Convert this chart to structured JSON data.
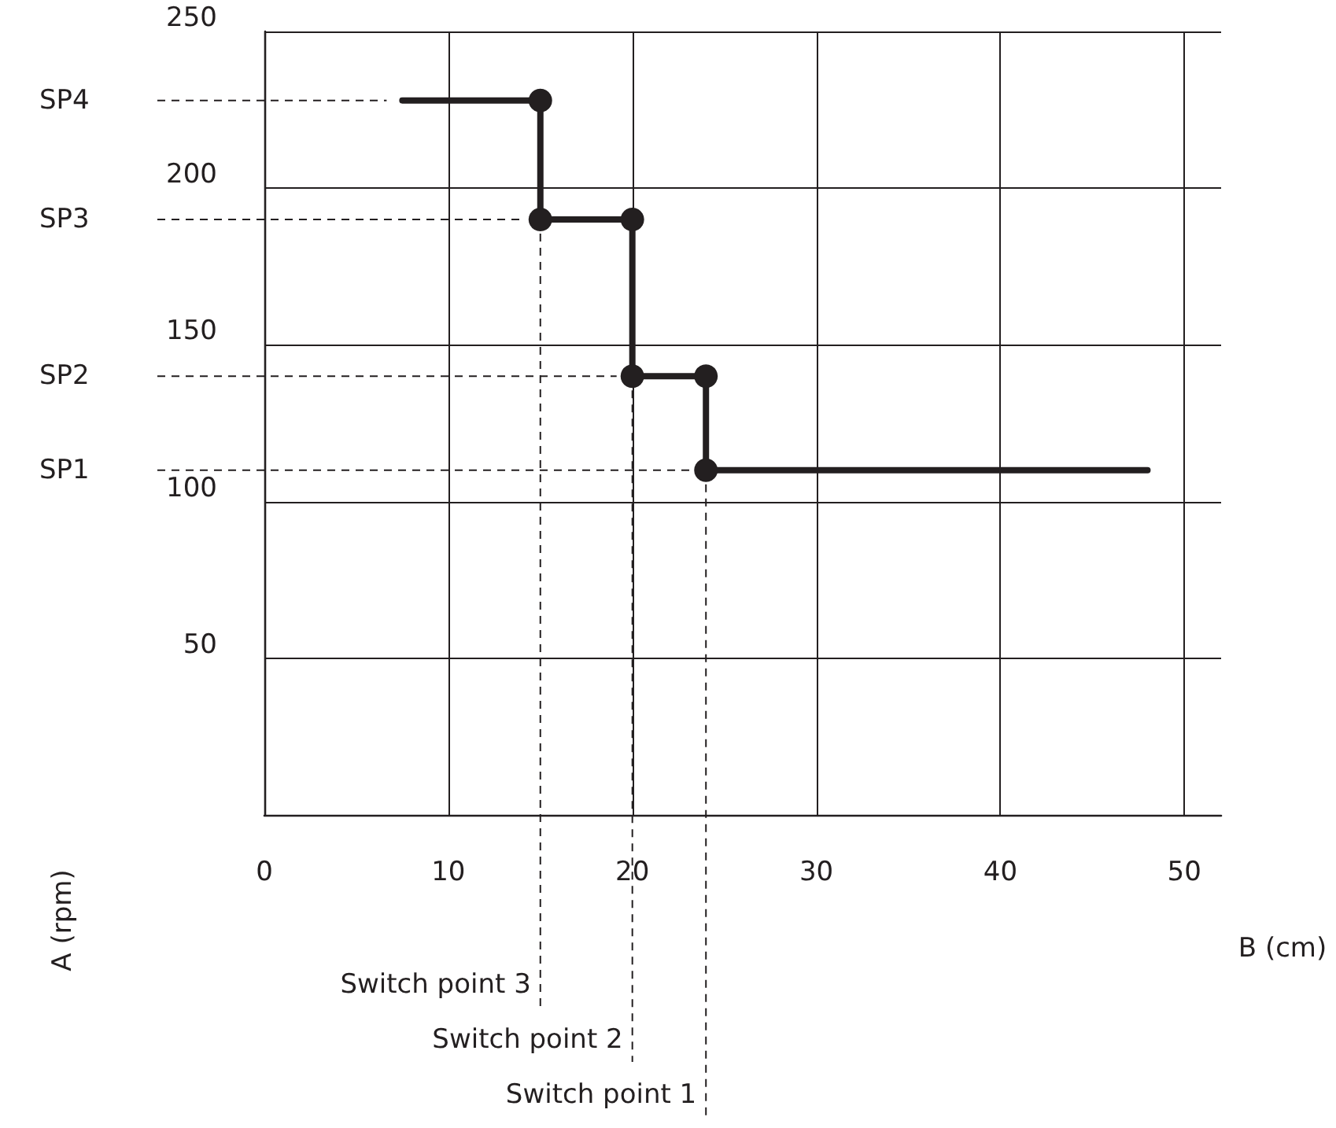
{
  "chart_data": {
    "type": "line",
    "xlabel": "B (cm)",
    "ylabel": "A (rpm)",
    "x": [
      7.5,
      15,
      15,
      20,
      20,
      24,
      24,
      48
    ],
    "series": [
      {
        "color": "#231f20",
        "values": [
          228,
          228,
          190,
          190,
          140,
          140,
          110,
          110
        ]
      }
    ],
    "xlim": [
      0,
      52
    ],
    "xticks": [
      0,
      10,
      20,
      30,
      40,
      50
    ],
    "ylim": [
      0,
      250
    ],
    "yticks": [
      50,
      100,
      150,
      200,
      250
    ],
    "grid": true,
    "marker": "circle",
    "line_style": "solid",
    "ref_lines": [
      {
        "axis": "y",
        "value": 228,
        "label": "SP4",
        "line_style": "dashed"
      },
      {
        "axis": "y",
        "value": 190,
        "label": "SP3",
        "line_style": "dashed"
      },
      {
        "axis": "y",
        "value": 140,
        "label": "SP2",
        "line_style": "dashed"
      },
      {
        "axis": "y",
        "value": 110,
        "label": "SP1",
        "line_style": "dashed"
      },
      {
        "axis": "x",
        "value": 15,
        "label": "Switch point 3",
        "line_style": "dashed"
      },
      {
        "axis": "x",
        "value": 20,
        "label": "Switch point 2",
        "line_style": "dashed"
      },
      {
        "axis": "x",
        "value": 24,
        "label": "Switch point 1",
        "line_style": "dashed"
      }
    ]
  }
}
